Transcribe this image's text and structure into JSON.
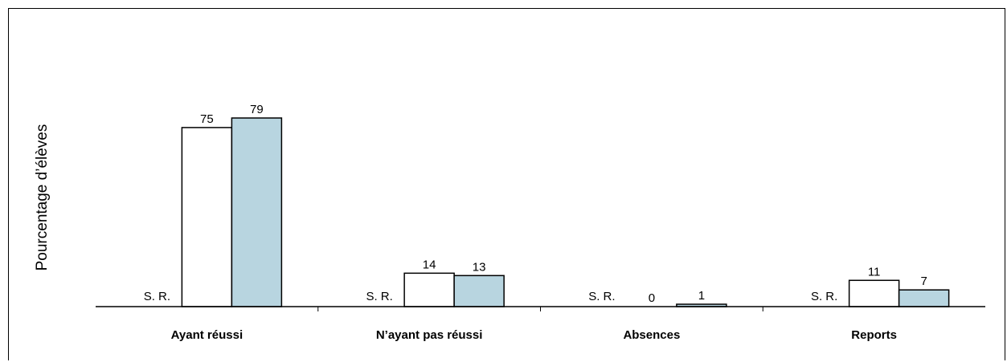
{
  "chart_data": {
    "type": "bar",
    "categories": [
      "Ayant réussi",
      "N’ayant pas réussi",
      "Absences",
      "Reports"
    ],
    "ylabel": "Pourcentage d’élèves",
    "xlabel": "",
    "ylim": [
      0,
      100
    ],
    "grid": false,
    "series": [
      {
        "values": [
          null,
          null,
          null,
          null
        ],
        "value_labels": [
          "S. R.",
          "S. R.",
          "S. R.",
          "S. R."
        ],
        "fill": "#ffffff"
      },
      {
        "values": [
          75,
          14,
          0,
          11
        ],
        "fill": "#ffffff"
      },
      {
        "values": [
          79,
          13,
          1,
          7
        ],
        "fill": "#b8d5e0"
      }
    ]
  }
}
